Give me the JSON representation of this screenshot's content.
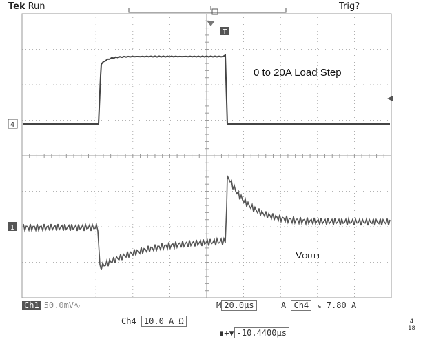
{
  "header": {
    "brand": "Tek",
    "run_state": "Run",
    "trig_state": "Trig?"
  },
  "screen": {
    "annotation_load": "0 to 20A Load Step",
    "vout_label_main": "V",
    "vout_label_sub": "OUT1",
    "ch4_marker": "4",
    "ch1_marker": "1",
    "trigger_marker": "T"
  },
  "footer": {
    "ch1_tag": "Ch1",
    "ch1_scale": "50.0mV∿",
    "timebase_prefix": "M",
    "timebase_value": "20.0µs",
    "trigger_mode": "A",
    "trigger_source": "Ch4",
    "trigger_slope": "↘",
    "trigger_level": "7.80 A",
    "ch4_label": "Ch4",
    "ch4_scale": "10.0 A Ω",
    "offset_prefix": "▮+▼",
    "offset_value": "-10.4400µs",
    "corner_top": "4",
    "corner_bottom": "18"
  },
  "colors": {
    "grid": "#9a9a9a",
    "trace": "#444444",
    "background": "#ffffff"
  }
}
